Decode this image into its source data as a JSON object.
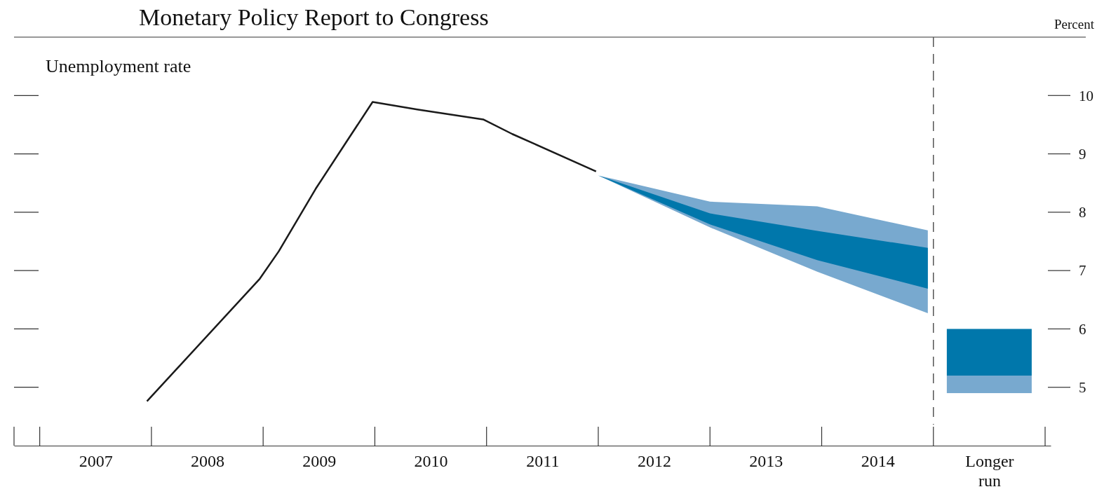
{
  "chart_data": {
    "type": "line",
    "title": "Monetary Policy Report to Congress",
    "subtitle": "Unemployment rate",
    "ylabel": "Percent",
    "xlim": [
      2006.77,
      2016.05
    ],
    "ylim": [
      4,
      11
    ],
    "xticks": [
      {
        "value": 2007.5,
        "label": "2007"
      },
      {
        "value": 2008.5,
        "label": "2008"
      },
      {
        "value": 2009.5,
        "label": "2009"
      },
      {
        "value": 2010.5,
        "label": "2010"
      },
      {
        "value": 2011.5,
        "label": "2011"
      },
      {
        "value": 2012.5,
        "label": "2012"
      },
      {
        "value": 2013.5,
        "label": "2013"
      },
      {
        "value": 2014.5,
        "label": "2014"
      },
      {
        "value": 2015.5,
        "label": "Longer run"
      }
    ],
    "yticks": [
      5,
      6,
      7,
      8,
      9,
      10
    ],
    "grid": false,
    "ref_lines": [
      {
        "axis": "x",
        "value": 2015,
        "color": "#555555",
        "line_style": "dashed"
      }
    ],
    "series": [
      {
        "color": "#1a1a1a",
        "x": [
          2007.96,
          2008.97,
          2009.14,
          2009.47,
          2009.74,
          2009.98,
          2010.38,
          2010.97,
          2011.23,
          2011.43,
          2011.98
        ],
        "values": [
          4.76,
          6.86,
          7.33,
          8.4,
          9.19,
          9.89,
          9.76,
          9.59,
          9.34,
          9.17,
          8.7
        ]
      },
      {
        "type": "area",
        "color": "#78a9cf",
        "x": [
          2012,
          2013,
          2013.96,
          2014.95
        ],
        "values": [
          null,
          null,
          null,
          null
        ],
        "lower": [
          8.63,
          7.74,
          6.98,
          6.27
        ],
        "upper": [
          8.63,
          8.18,
          8.1,
          7.69
        ]
      },
      {
        "type": "area",
        "color": "#0077ab",
        "x": [
          2012,
          2013,
          2013.96,
          2014.95
        ],
        "values": [
          null,
          null,
          null,
          null
        ],
        "lower": [
          8.63,
          7.79,
          7.18,
          6.69
        ],
        "upper": [
          8.63,
          7.98,
          7.68,
          7.39
        ]
      },
      {
        "type": "bar",
        "color": "#78a9cf",
        "x": [
          2015.5
        ],
        "base": [
          4.9
        ],
        "values": [
          0.3
        ]
      },
      {
        "type": "bar",
        "color": "#0077ab",
        "x": [
          2015.5
        ],
        "base": [
          5.2
        ],
        "values": [
          0.8
        ]
      }
    ]
  }
}
